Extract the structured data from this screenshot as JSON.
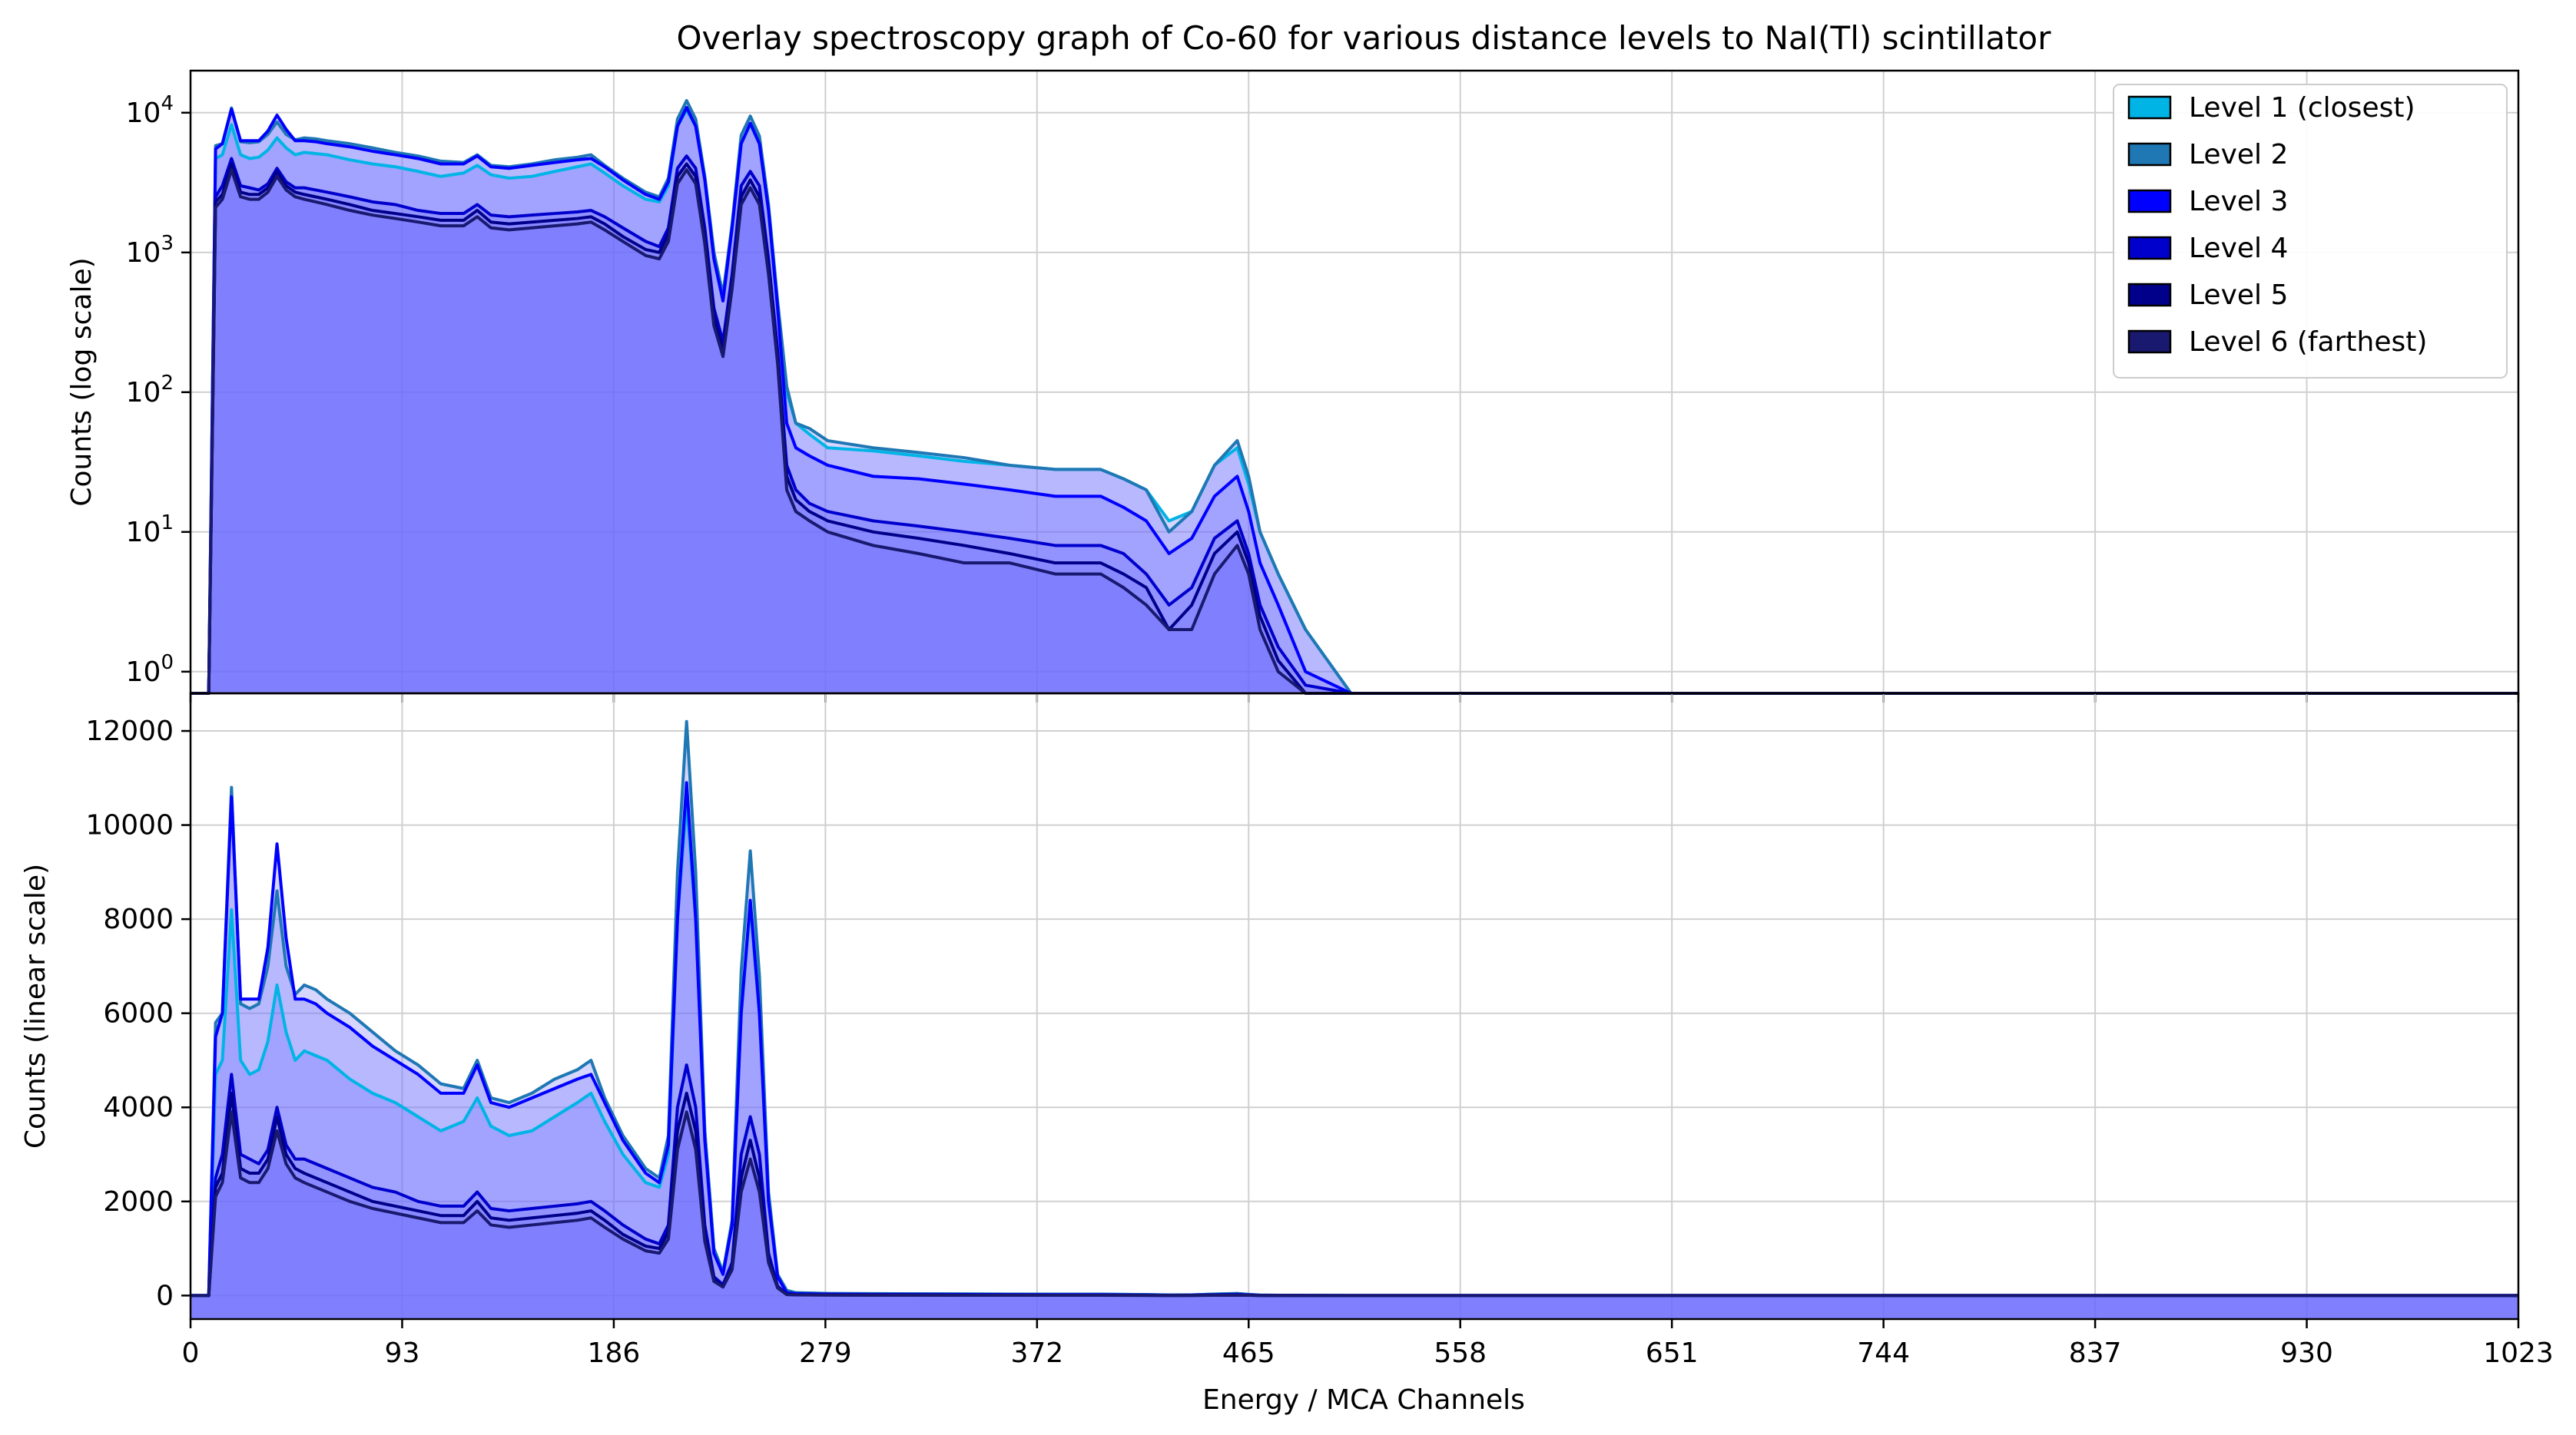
{
  "chart_data": {
    "type": "area",
    "title": "Overlay spectroscopy graph of Co-60 for various distance levels to NaI(Tl) scintillator",
    "xlabel": "Energy / MCA Channels",
    "xlim": [
      0,
      1023
    ],
    "x_ticks": [
      0,
      93,
      186,
      279,
      372,
      465,
      558,
      651,
      744,
      837,
      930,
      1023
    ],
    "x_tick_labels": [
      "0",
      "93",
      "186",
      "279",
      "372",
      "465",
      "558",
      "651",
      "744",
      "837",
      "930",
      "1023"
    ],
    "grid": true,
    "legend_position": "top-right",
    "panels": [
      {
        "name": "log",
        "ylabel": "Counts (log scale)",
        "yscale": "log",
        "ylim": [
          0.7,
          20000
        ],
        "y_ticks": [
          1,
          10,
          100,
          1000,
          10000
        ],
        "y_tick_labels": [
          {
            "base": "10",
            "exp": "0"
          },
          {
            "base": "10",
            "exp": "1"
          },
          {
            "base": "10",
            "exp": "2"
          },
          {
            "base": "10",
            "exp": "3"
          },
          {
            "base": "10",
            "exp": "4"
          }
        ]
      },
      {
        "name": "linear",
        "ylabel": "Counts (linear scale)",
        "yscale": "linear",
        "ylim": [
          -500,
          12800
        ],
        "y_ticks": [
          0,
          2000,
          4000,
          6000,
          8000,
          10000,
          12000
        ],
        "y_tick_labels": [
          "0",
          "2000",
          "4000",
          "6000",
          "8000",
          "10000",
          "12000"
        ]
      }
    ],
    "x": [
      0,
      8,
      11,
      14,
      18,
      22,
      26,
      30,
      34,
      38,
      42,
      46,
      50,
      55,
      60,
      70,
      80,
      90,
      100,
      110,
      120,
      126,
      132,
      140,
      150,
      160,
      170,
      176,
      182,
      190,
      200,
      206,
      210,
      214,
      218,
      222,
      226,
      230,
      234,
      238,
      242,
      246,
      250,
      254,
      258,
      262,
      266,
      272,
      280,
      300,
      320,
      340,
      360,
      380,
      400,
      410,
      420,
      430,
      440,
      450,
      460,
      465,
      470,
      478,
      490,
      510,
      600,
      700,
      800,
      900,
      1023
    ],
    "series": [
      {
        "name": "Level 1 (closest)",
        "color": "#00b4e6",
        "values": [
          0,
          0,
          4700,
          5000,
          8200,
          5000,
          4700,
          4800,
          5400,
          6600,
          5600,
          5000,
          5200,
          5100,
          5000,
          4600,
          4300,
          4100,
          3800,
          3500,
          3700,
          4200,
          3600,
          3400,
          3500,
          3800,
          4100,
          4300,
          3700,
          3000,
          2400,
          2300,
          3000,
          8000,
          10500,
          8000,
          3500,
          1000,
          500,
          1500,
          6000,
          8300,
          6000,
          2000,
          400,
          100,
          60,
          50,
          40,
          38,
          35,
          32,
          30,
          28,
          28,
          24,
          20,
          12,
          14,
          30,
          40,
          22,
          10,
          5,
          2,
          0.6,
          0.6,
          0.6,
          0.6,
          0.6,
          0.6
        ]
      },
      {
        "name": "Level 2",
        "color": "#1f77b4",
        "values": [
          0,
          0,
          5800,
          6000,
          10800,
          6200,
          6100,
          6200,
          7000,
          8600,
          7000,
          6400,
          6600,
          6500,
          6300,
          6000,
          5600,
          5200,
          4900,
          4500,
          4400,
          5000,
          4200,
          4100,
          4300,
          4600,
          4800,
          5000,
          4200,
          3400,
          2700,
          2500,
          3400,
          9000,
          12200,
          9000,
          3500,
          1000,
          500,
          1600,
          6900,
          9450,
          6800,
          2200,
          450,
          110,
          60,
          55,
          45,
          40,
          37,
          34,
          30,
          28,
          28,
          24,
          20,
          10,
          14,
          30,
          45,
          25,
          10,
          5,
          2,
          0.6,
          0.6,
          0.6,
          0.6,
          0.6,
          0.6
        ]
      },
      {
        "name": "Level 3",
        "color": "#0000ff",
        "values": [
          0,
          0,
          5500,
          6000,
          10600,
          6300,
          6300,
          6300,
          7400,
          9600,
          7600,
          6300,
          6300,
          6200,
          6000,
          5700,
          5300,
          5000,
          4700,
          4300,
          4300,
          4900,
          4100,
          4000,
          4200,
          4400,
          4600,
          4700,
          4100,
          3300,
          2600,
          2400,
          3200,
          8000,
          10900,
          8000,
          3300,
          900,
          450,
          1500,
          6000,
          8400,
          6000,
          2000,
          400,
          60,
          40,
          35,
          30,
          25,
          24,
          22,
          20,
          18,
          18,
          15,
          12,
          7,
          9,
          18,
          25,
          14,
          6,
          3,
          1,
          0.6,
          0.6,
          0.6,
          0.6,
          0.6,
          0.6
        ]
      },
      {
        "name": "Level 4",
        "color": "#0000cd",
        "values": [
          0,
          0,
          2500,
          3000,
          4700,
          3000,
          2900,
          2800,
          3100,
          4000,
          3200,
          2900,
          2900,
          2800,
          2700,
          2500,
          2300,
          2200,
          2000,
          1900,
          1900,
          2200,
          1850,
          1800,
          1850,
          1900,
          1950,
          2000,
          1800,
          1500,
          1200,
          1100,
          1500,
          4000,
          4900,
          4000,
          1500,
          400,
          230,
          700,
          3000,
          3800,
          3000,
          900,
          200,
          30,
          20,
          16,
          14,
          12,
          11,
          10,
          9,
          8,
          8,
          7,
          5,
          3,
          4,
          9,
          12,
          7,
          3,
          1.5,
          0.8,
          0.6,
          0.6,
          0.6,
          0.6,
          0.6,
          0.6
        ]
      },
      {
        "name": "Level 5",
        "color": "#00008b",
        "values": [
          0,
          0,
          2300,
          2600,
          4300,
          2700,
          2600,
          2600,
          2900,
          3800,
          3000,
          2700,
          2600,
          2500,
          2400,
          2200,
          2000,
          1900,
          1800,
          1700,
          1700,
          2000,
          1650,
          1600,
          1650,
          1700,
          1750,
          1800,
          1600,
          1300,
          1050,
          1000,
          1350,
          3500,
          4300,
          3500,
          1300,
          350,
          200,
          600,
          2500,
          3300,
          2500,
          800,
          180,
          25,
          17,
          14,
          12,
          10,
          9,
          8,
          7,
          6,
          6,
          5,
          4,
          2,
          3,
          7,
          10,
          6,
          2.5,
          1.2,
          0.7,
          0.6,
          0.6,
          0.6,
          0.6,
          0.6,
          0.6
        ]
      },
      {
        "name": "Level 6 (farthest)",
        "color": "#191970",
        "values": [
          0,
          0,
          2100,
          2400,
          3900,
          2500,
          2400,
          2400,
          2700,
          3500,
          2800,
          2500,
          2400,
          2300,
          2200,
          2000,
          1850,
          1750,
          1650,
          1550,
          1550,
          1800,
          1500,
          1450,
          1500,
          1550,
          1600,
          1650,
          1450,
          1200,
          950,
          900,
          1200,
          3100,
          3900,
          3100,
          1150,
          300,
          180,
          550,
          2200,
          2900,
          2200,
          700,
          160,
          20,
          14,
          12,
          10,
          8,
          7,
          6,
          6,
          5,
          5,
          4,
          3,
          2,
          2,
          5,
          8,
          5,
          2,
          1,
          0.6,
          0.6,
          0.6,
          0.6,
          0.6,
          0.6,
          0.6
        ]
      }
    ]
  }
}
